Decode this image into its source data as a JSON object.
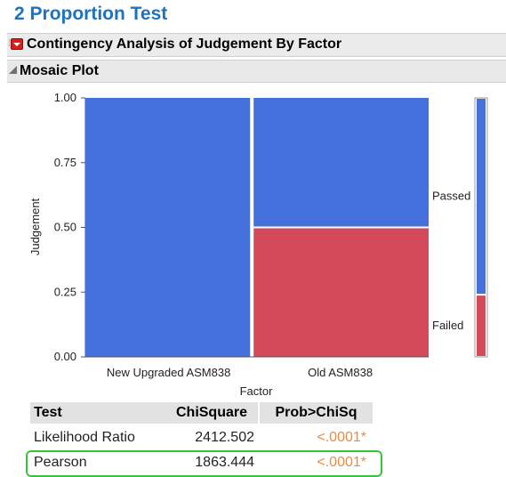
{
  "page": {
    "title": "2 Proportion Test"
  },
  "report": {
    "title": "Contingency Analysis of Judgement By Factor",
    "menu_icon": "red-triangle-menu-icon"
  },
  "outline": {
    "title": "Mosaic Plot",
    "toggle_icon": "disclosure-triangle-icon"
  },
  "chart_data": {
    "type": "mosaic",
    "xlabel": "Factor",
    "ylabel": "Judgement",
    "ylim": [
      0,
      1
    ],
    "yticks": [
      "0.00",
      "0.25",
      "0.50",
      "0.75",
      "1.00"
    ],
    "ytick_values": [
      0,
      0.25,
      0.5,
      0.75,
      1
    ],
    "categories": [
      "New Upgraded ASM838",
      "Old ASM838"
    ],
    "category_widths": [
      0.485,
      0.515
    ],
    "series": [
      {
        "name": "Failed",
        "values": [
          0.0,
          0.5
        ],
        "color": "#d34b5b"
      },
      {
        "name": "Passed",
        "values": [
          1.0,
          0.5
        ],
        "color": "#4370db"
      }
    ],
    "side_bar": {
      "Failed": 0.24,
      "Passed": 0.76
    },
    "grid": false
  },
  "stats_table": {
    "headers": [
      "Test",
      "ChiSquare",
      "Prob>ChiSq"
    ],
    "rows": [
      {
        "test": "Likelihood Ratio",
        "chisquare": "2412.502",
        "prob": "<.0001*"
      },
      {
        "test": "Pearson",
        "chisquare": "1863.444",
        "prob": "<.0001*"
      }
    ],
    "prob_color": "#ef8a3c",
    "highlight_color": "#38c438"
  }
}
